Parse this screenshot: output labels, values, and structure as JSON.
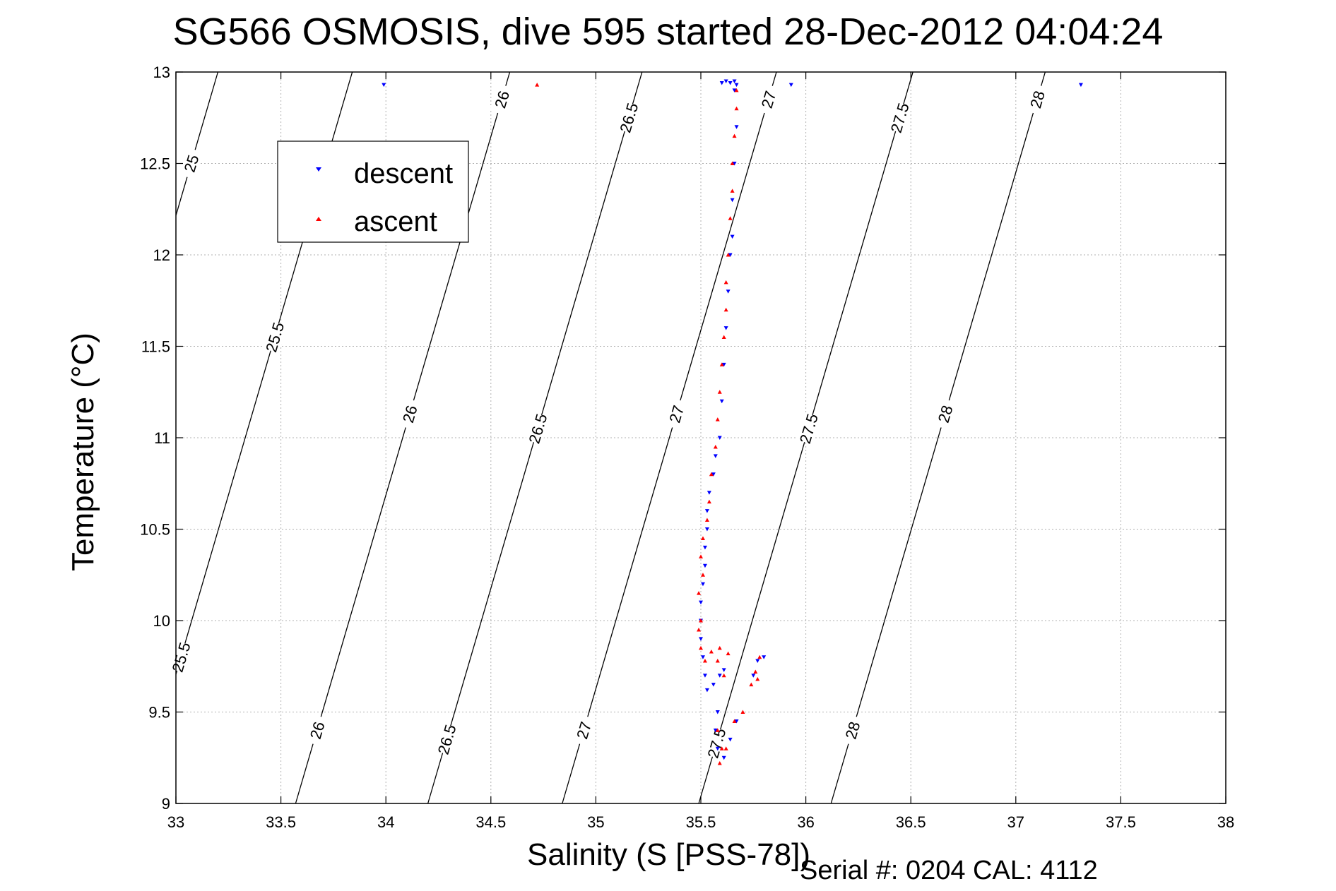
{
  "chart_data": {
    "type": "scatter",
    "title": "SG566 OSMOSIS, dive 595 started 28-Dec-2012 04:04:24",
    "xlabel": "Salinity (S [PSS-78])",
    "ylabel": "Temperature (°C)",
    "footer": "Serial #: 0204  CAL: 4112",
    "xlim": [
      33,
      38
    ],
    "ylim": [
      9,
      13
    ],
    "xticks": [
      "33",
      "33.5",
      "34",
      "34.5",
      "35",
      "35.5",
      "36",
      "36.5",
      "37",
      "37.5",
      "38"
    ],
    "yticks": [
      "9",
      "9.5",
      "10",
      "10.5",
      "11",
      "11.5",
      "12",
      "12.5",
      "13"
    ],
    "grid": true,
    "legend_position": "top-left",
    "colors": {
      "descent": "#0000ff",
      "ascent": "#ff0000",
      "contour": "#000000",
      "grid": "#b0b0b0"
    },
    "isopycnals": [
      {
        "sigma": "25",
        "x_at_9": 32.18,
        "x_at_13": 33.2,
        "labels": [
          {
            "t": 12.5,
            "text": "25"
          }
        ]
      },
      {
        "sigma": "25.5",
        "x_at_9": 32.82,
        "x_at_13": 33.84,
        "labels": [
          {
            "t": 11.55,
            "text": "25.5"
          },
          {
            "t": 9.8,
            "text": "25.5"
          }
        ]
      },
      {
        "sigma": "26",
        "x_at_9": 33.57,
        "x_at_13": 34.59,
        "labels": [
          {
            "t": 12.85,
            "text": "26"
          },
          {
            "t": 11.13,
            "text": "26"
          },
          {
            "t": 9.4,
            "text": "26"
          }
        ]
      },
      {
        "sigma": "26.5",
        "x_at_9": 34.2,
        "x_at_13": 35.22,
        "labels": [
          {
            "t": 12.75,
            "text": "26.5"
          },
          {
            "t": 11.05,
            "text": "26.5"
          },
          {
            "t": 9.35,
            "text": "26.5"
          }
        ]
      },
      {
        "sigma": "27",
        "x_at_9": 34.84,
        "x_at_13": 35.86,
        "labels": [
          {
            "t": 12.85,
            "text": "27"
          },
          {
            "t": 11.13,
            "text": "27"
          },
          {
            "t": 9.4,
            "text": "27"
          }
        ]
      },
      {
        "sigma": "27.5",
        "x_at_9": 35.49,
        "x_at_13": 36.51,
        "labels": [
          {
            "t": 12.75,
            "text": "27.5"
          },
          {
            "t": 11.05,
            "text": "27.5"
          },
          {
            "t": 9.33,
            "text": "27.5"
          }
        ]
      },
      {
        "sigma": "28",
        "x_at_9": 36.12,
        "x_at_13": 37.14,
        "labels": [
          {
            "t": 12.85,
            "text": "28"
          },
          {
            "t": 11.13,
            "text": "28"
          },
          {
            "t": 9.4,
            "text": "28"
          }
        ]
      }
    ],
    "series": [
      {
        "name": "descent",
        "color": "#0000ff",
        "marker": "triangle-down",
        "points": [
          [
            33.99,
            12.93
          ],
          [
            35.93,
            12.93
          ],
          [
            37.31,
            12.93
          ],
          [
            35.6,
            12.94
          ],
          [
            35.62,
            12.95
          ],
          [
            35.64,
            12.94
          ],
          [
            35.66,
            12.95
          ],
          [
            35.67,
            12.93
          ],
          [
            35.66,
            12.9
          ],
          [
            35.67,
            12.7
          ],
          [
            35.66,
            12.5
          ],
          [
            35.65,
            12.3
          ],
          [
            35.65,
            12.1
          ],
          [
            35.64,
            12.0
          ],
          [
            35.63,
            11.8
          ],
          [
            35.62,
            11.6
          ],
          [
            35.61,
            11.4
          ],
          [
            35.6,
            11.2
          ],
          [
            35.59,
            11.0
          ],
          [
            35.57,
            10.9
          ],
          [
            35.56,
            10.8
          ],
          [
            35.54,
            10.7
          ],
          [
            35.53,
            10.6
          ],
          [
            35.53,
            10.5
          ],
          [
            35.52,
            10.4
          ],
          [
            35.52,
            10.3
          ],
          [
            35.51,
            10.2
          ],
          [
            35.5,
            10.1
          ],
          [
            35.5,
            10.0
          ],
          [
            35.5,
            9.9
          ],
          [
            35.51,
            9.8
          ],
          [
            35.52,
            9.7
          ],
          [
            35.53,
            9.62
          ],
          [
            35.56,
            9.65
          ],
          [
            35.59,
            9.7
          ],
          [
            35.61,
            9.73
          ],
          [
            35.58,
            9.5
          ],
          [
            35.57,
            9.4
          ],
          [
            35.58,
            9.3
          ],
          [
            35.61,
            9.25
          ],
          [
            35.64,
            9.35
          ],
          [
            35.67,
            9.45
          ],
          [
            35.75,
            9.7
          ],
          [
            35.77,
            9.78
          ],
          [
            35.8,
            9.8
          ]
        ]
      },
      {
        "name": "ascent",
        "color": "#ff0000",
        "marker": "triangle-up",
        "points": [
          [
            34.72,
            12.93
          ],
          [
            35.67,
            12.9
          ],
          [
            35.67,
            12.8
          ],
          [
            35.66,
            12.65
          ],
          [
            35.65,
            12.5
          ],
          [
            35.65,
            12.35
          ],
          [
            35.64,
            12.2
          ],
          [
            35.63,
            12.0
          ],
          [
            35.62,
            11.85
          ],
          [
            35.62,
            11.7
          ],
          [
            35.61,
            11.55
          ],
          [
            35.6,
            11.4
          ],
          [
            35.59,
            11.25
          ],
          [
            35.58,
            11.1
          ],
          [
            35.57,
            10.95
          ],
          [
            35.55,
            10.8
          ],
          [
            35.54,
            10.65
          ],
          [
            35.53,
            10.55
          ],
          [
            35.51,
            10.45
          ],
          [
            35.5,
            10.35
          ],
          [
            35.51,
            10.25
          ],
          [
            35.49,
            10.15
          ],
          [
            35.5,
            10.0
          ],
          [
            35.49,
            9.95
          ],
          [
            35.5,
            9.85
          ],
          [
            35.52,
            9.78
          ],
          [
            35.55,
            9.83
          ],
          [
            35.58,
            9.78
          ],
          [
            35.61,
            9.7
          ],
          [
            35.63,
            9.82
          ],
          [
            35.59,
            9.85
          ],
          [
            35.58,
            9.4
          ],
          [
            35.6,
            9.3
          ],
          [
            35.59,
            9.22
          ],
          [
            35.62,
            9.3
          ],
          [
            35.66,
            9.45
          ],
          [
            35.7,
            9.5
          ],
          [
            35.74,
            9.65
          ],
          [
            35.76,
            9.72
          ],
          [
            35.78,
            9.8
          ],
          [
            35.77,
            9.68
          ]
        ]
      }
    ]
  }
}
